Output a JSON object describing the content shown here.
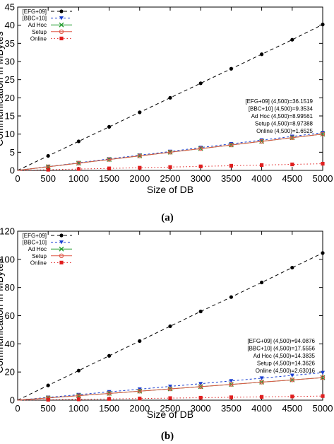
{
  "chart_data": [
    {
      "type": "line",
      "caption": "(a)",
      "xlabel": "Size of DB",
      "ylabel": "Communication in MBytes",
      "xlim": [
        0,
        5000
      ],
      "ylim": [
        0,
        45
      ],
      "xticks": [
        0,
        500,
        1000,
        1500,
        2000,
        2500,
        3000,
        3500,
        4000,
        4500,
        5000
      ],
      "yticks": [
        0,
        5,
        10,
        15,
        20,
        25,
        30,
        35,
        40,
        45
      ],
      "legend_position": "top-left",
      "x": [
        0,
        500,
        1000,
        1500,
        2000,
        2500,
        3000,
        3500,
        4000,
        4500,
        5000
      ],
      "series": [
        {
          "name": "[EFG+09]",
          "color": "#000000",
          "dash": "5,4",
          "marker": "circle",
          "values": [
            0,
            4.0,
            8.0,
            12.0,
            16.0,
            20.0,
            24.0,
            28.0,
            32.0,
            36.0,
            40.2
          ]
        },
        {
          "name": "[BBC+10]",
          "color": "#1a3fd1",
          "dash": "3,3",
          "marker": "triangle-down",
          "values": [
            0,
            1.05,
            2.1,
            3.15,
            4.2,
            5.2,
            6.3,
            7.3,
            8.35,
            9.35,
            10.4
          ]
        },
        {
          "name": "Ad Hoc",
          "color": "#1f9a2a",
          "dash": "",
          "marker": "cross",
          "values": [
            0,
            1.0,
            2.0,
            3.0,
            4.0,
            5.0,
            6.0,
            7.0,
            8.0,
            9.0,
            10.0
          ]
        },
        {
          "name": "Setup",
          "color": "#e05a4a",
          "dash": "",
          "marker": "circle-open",
          "values": [
            0,
            1.0,
            2.0,
            3.0,
            4.0,
            5.0,
            6.0,
            7.0,
            8.0,
            9.0,
            10.0
          ]
        },
        {
          "name": "Online",
          "color": "#e02020",
          "dash": "1.5,3",
          "marker": "square",
          "values": [
            0,
            0.18,
            0.37,
            0.55,
            0.73,
            0.92,
            1.1,
            1.28,
            1.47,
            1.65,
            1.84
          ]
        }
      ],
      "annotations": [
        "[EFG+09] (4,500)=36.1519",
        "[BBC+10] (4,500)=9.3534",
        "Ad Hoc (4,500)=8.99561",
        "Setup (4,500)=8.97388",
        "Online (4,500)=1.6525"
      ]
    },
    {
      "type": "line",
      "caption": "(b)",
      "xlabel": "Size of DB",
      "ylabel": "Communication in MBytes",
      "xlim": [
        0,
        5000
      ],
      "ylim": [
        0,
        120
      ],
      "xticks": [
        0,
        500,
        1000,
        1500,
        2000,
        2500,
        3000,
        3500,
        4000,
        4500,
        5000
      ],
      "yticks": [
        0,
        20,
        40,
        60,
        80,
        100,
        120
      ],
      "legend_position": "top-left",
      "x": [
        0,
        500,
        1000,
        1500,
        2000,
        2500,
        3000,
        3500,
        4000,
        4500,
        5000
      ],
      "series": [
        {
          "name": "[EFG+09]",
          "color": "#000000",
          "dash": "5,4",
          "marker": "circle",
          "values": [
            0,
            10.5,
            21.0,
            31.5,
            42.0,
            52.5,
            63.0,
            73.2,
            83.6,
            94.1,
            104.5
          ]
        },
        {
          "name": "[BBC+10]",
          "color": "#1a3fd1",
          "dash": "3,3",
          "marker": "triangle-down",
          "values": [
            0,
            2.0,
            3.9,
            5.9,
            7.8,
            9.8,
            11.7,
            13.7,
            15.6,
            17.6,
            19.5
          ]
        },
        {
          "name": "Ad Hoc",
          "color": "#1f9a2a",
          "dash": "",
          "marker": "cross",
          "values": [
            0,
            1.6,
            3.2,
            4.8,
            6.4,
            8.0,
            9.6,
            11.2,
            12.8,
            14.4,
            16.0
          ]
        },
        {
          "name": "Setup",
          "color": "#e05a4a",
          "dash": "",
          "marker": "circle-open",
          "values": [
            0,
            1.6,
            3.2,
            4.8,
            6.4,
            8.0,
            9.6,
            11.2,
            12.8,
            14.4,
            16.0
          ]
        },
        {
          "name": "Online",
          "color": "#e02020",
          "dash": "1.5,3",
          "marker": "square",
          "values": [
            0,
            0.29,
            0.58,
            0.88,
            1.17,
            1.46,
            1.75,
            2.05,
            2.34,
            2.63,
            2.92
          ]
        }
      ],
      "annotations": [
        "[EFG+09] (4,500)=94.0876",
        "[BBC+10] (4,500)=17.5556",
        "Ad Hoc (4,500)=14.3835",
        "Setup (4,500)=14.3626",
        "Online (4,500)=2.63016"
      ]
    }
  ]
}
